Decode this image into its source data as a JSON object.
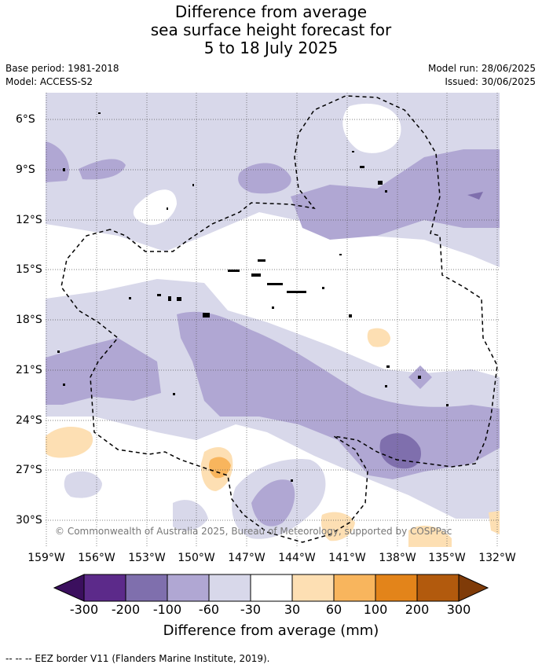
{
  "title": {
    "line1": "Difference from average",
    "line2": "sea surface height forecast for",
    "line3": "5 to 18 July 2025"
  },
  "meta": {
    "base_period": "Base period: 1981-2018",
    "model": "Model: ACCESS-S2",
    "model_run": "Model run: 28/06/2025",
    "issued": "Issued: 30/06/2025"
  },
  "map": {
    "lat_labels": [
      "6°S",
      "9°S",
      "12°S",
      "15°S",
      "18°S",
      "21°S",
      "24°S",
      "27°S",
      "30°S"
    ],
    "lon_labels": [
      "159°W",
      "156°W",
      "153°W",
      "150°W",
      "147°W",
      "144°W",
      "141°W",
      "138°W",
      "135°W",
      "132°W"
    ],
    "copyright": "© Commonwealth of Australia 2025, Bureau of Meteorology, supported by COSPPac"
  },
  "colorbar": {
    "labels": [
      "-300",
      "-200",
      "-100",
      "-60",
      "-30",
      "30",
      "60",
      "100",
      "200",
      "300"
    ],
    "colors": [
      "#3b0f5e",
      "#5c2a8a",
      "#7f6fad",
      "#b0a7d3",
      "#d8d8ea",
      "#ffffff",
      "#fddfb3",
      "#f8b55d",
      "#e3841a",
      "#b25a0d",
      "#7f3b08"
    ],
    "title": "Difference from average (mm)"
  },
  "footer": "--  --  -- EEZ border V11 (Flanders Marine Institute, 2019)."
}
